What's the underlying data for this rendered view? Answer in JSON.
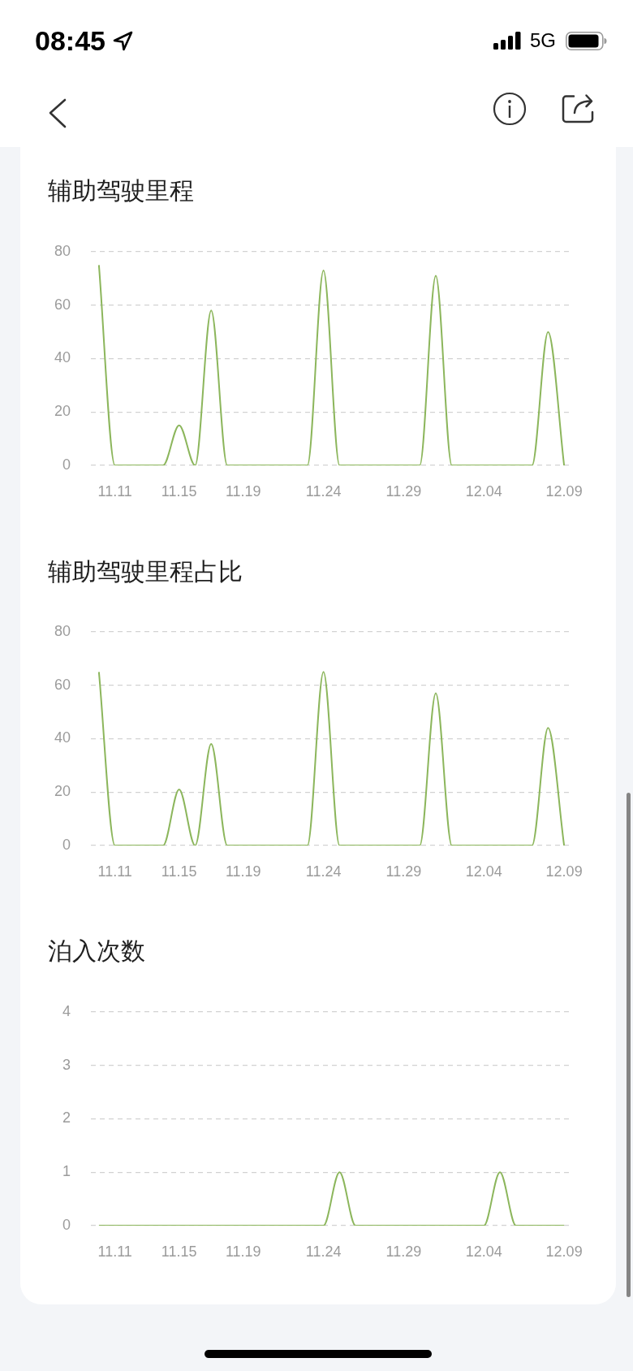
{
  "chart_data": [
    {
      "type": "line",
      "title": "辅助驾驶里程",
      "categories": [
        null,
        "11.11",
        null,
        null,
        null,
        "11.15",
        null,
        null,
        null,
        "11.19",
        null,
        null,
        null,
        null,
        "11.24",
        null,
        null,
        null,
        null,
        "11.29",
        null,
        null,
        null,
        null,
        "12.04",
        null,
        null,
        null,
        null,
        "12.09"
      ],
      "values": [
        75,
        0,
        0,
        0,
        0,
        15,
        0,
        58,
        0,
        0,
        0,
        0,
        0,
        0,
        73,
        0,
        0,
        0,
        0,
        0,
        0,
        71,
        0,
        0,
        0,
        0,
        0,
        0,
        50,
        0
      ],
      "color": "#8cb65c",
      "ylim": [
        0,
        80
      ],
      "yticks": [
        0,
        20,
        40,
        60,
        80
      ],
      "grid": "y",
      "marker": "none",
      "annotations": [
        "08:45",
        "5G"
      ]
    },
    {
      "type": "line",
      "title": "辅助驾驶里程占比",
      "categories": [
        null,
        "11.11",
        null,
        null,
        null,
        "11.15",
        null,
        null,
        null,
        "11.19",
        null,
        null,
        null,
        null,
        "11.24",
        null,
        null,
        null,
        null,
        "11.29",
        null,
        null,
        null,
        null,
        "12.04",
        null,
        null,
        null,
        null,
        "12.09"
      ],
      "values": [
        65,
        0,
        0,
        0,
        0,
        21,
        0,
        38,
        0,
        0,
        0,
        0,
        0,
        0,
        65,
        0,
        0,
        0,
        0,
        0,
        0,
        57,
        0,
        0,
        0,
        0,
        0,
        0,
        44,
        0
      ],
      "color": "#8cb65c",
      "ylim": [
        0,
        80
      ],
      "yticks": [
        0,
        20,
        40,
        60,
        80
      ],
      "grid": "y",
      "marker": "none"
    },
    {
      "type": "line",
      "title": "泊入次数",
      "categories": [
        null,
        "11.11",
        null,
        null,
        null,
        "11.15",
        null,
        null,
        null,
        "11.19",
        null,
        null,
        null,
        null,
        "11.24",
        null,
        null,
        null,
        null,
        "11.29",
        null,
        null,
        null,
        null,
        "12.04",
        null,
        null,
        null,
        null,
        "12.09"
      ],
      "values": [
        0,
        0,
        0,
        0,
        0,
        0,
        0,
        0,
        0,
        0,
        0,
        0,
        0,
        0,
        0,
        1,
        0,
        0,
        0,
        0,
        0,
        0,
        0,
        0,
        0,
        1,
        0,
        0,
        0,
        0
      ],
      "color": "#8cb65c",
      "ylim": [
        0,
        4
      ],
      "yticks": [
        0,
        1,
        2,
        3,
        4
      ],
      "grid": "y",
      "marker": "none"
    }
  ]
}
